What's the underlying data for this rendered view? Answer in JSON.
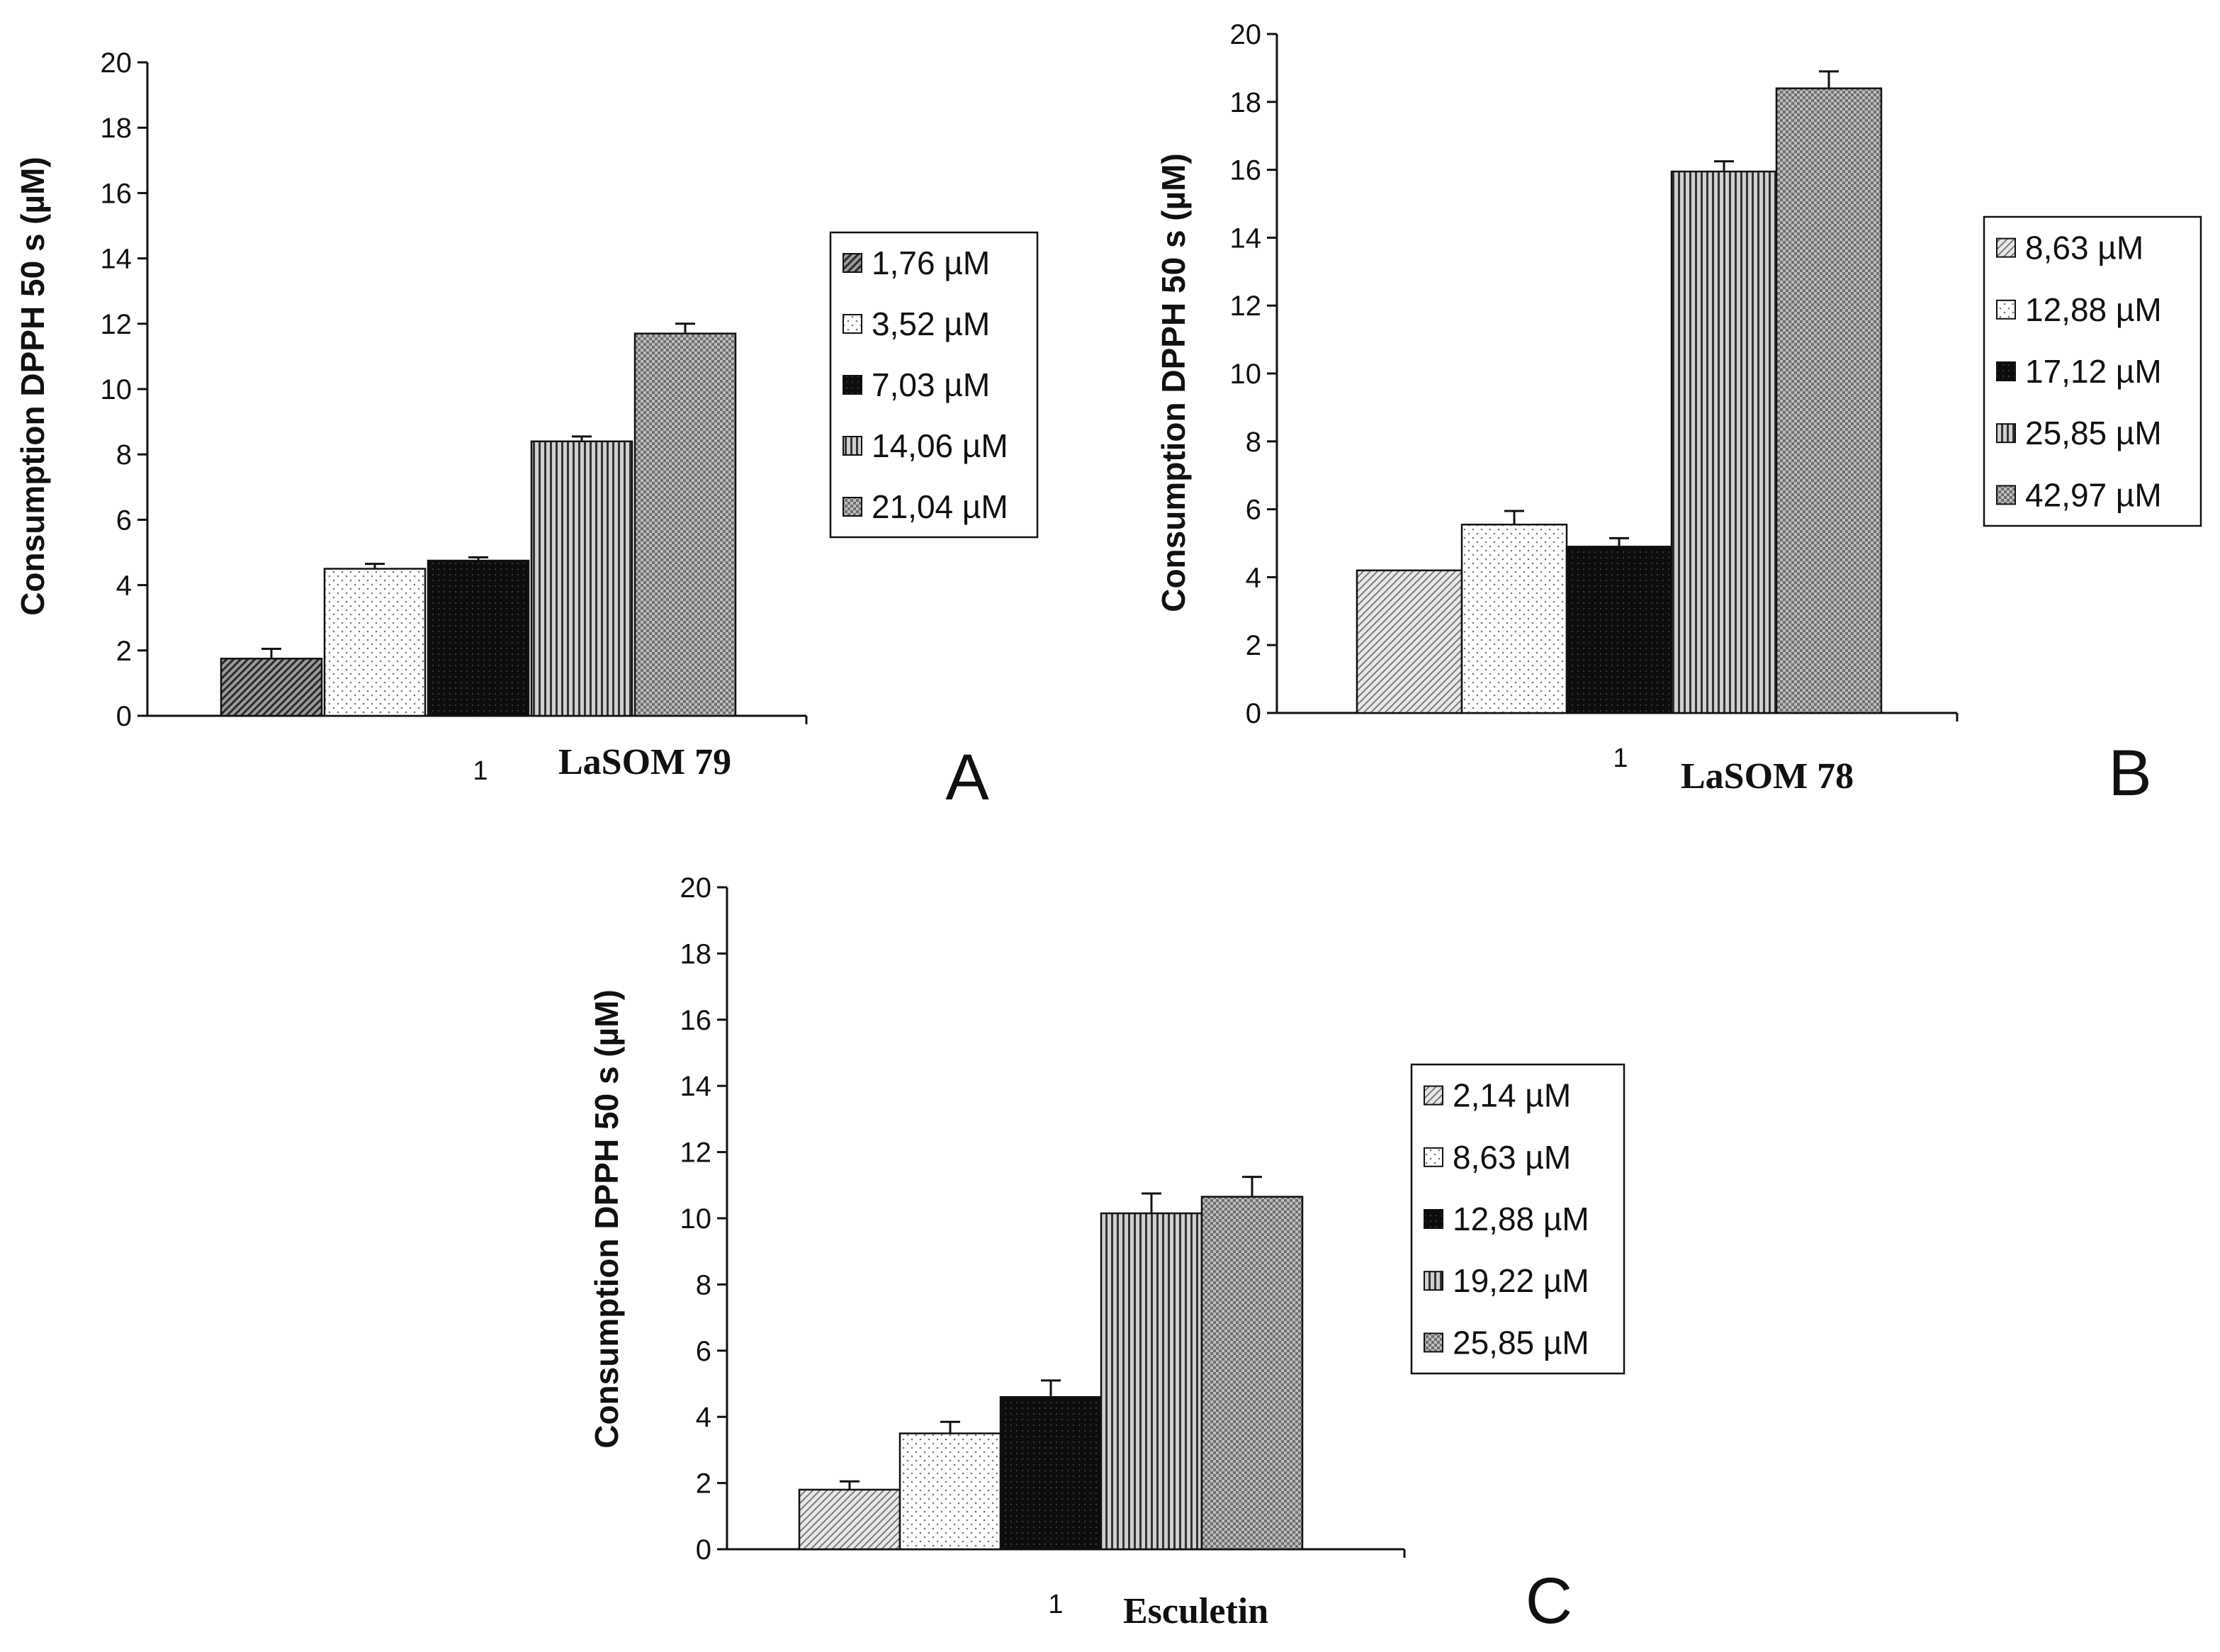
{
  "chart_data": [
    {
      "type": "bar",
      "panel": "A",
      "compound": "LaSOM 79",
      "ylabel": "Consumption DPPH 50 s (µM)",
      "category_label": "1",
      "ylim": [
        0,
        20
      ],
      "yticks": [
        0,
        2,
        4,
        6,
        8,
        10,
        12,
        14,
        16,
        18,
        20
      ],
      "legend_position": "right",
      "series": [
        {
          "name": "1,76 µM",
          "value": 1.75,
          "error": 0.3,
          "pattern": "diag-dark"
        },
        {
          "name": "3,52 µM",
          "value": 4.5,
          "error": 0.15,
          "pattern": "dots"
        },
        {
          "name": "7,03 µM",
          "value": 4.75,
          "error": 0.1,
          "pattern": "black"
        },
        {
          "name": "14,06 µM",
          "value": 8.4,
          "error": 0.15,
          "pattern": "vlines"
        },
        {
          "name": "21,04 µM",
          "value": 11.7,
          "error": 0.3,
          "pattern": "grid"
        }
      ]
    },
    {
      "type": "bar",
      "panel": "B",
      "compound": "LaSOM 78",
      "ylabel": "Consumption DPPH 50 s (µM)",
      "category_label": "1",
      "ylim": [
        0,
        20
      ],
      "yticks": [
        0,
        2,
        4,
        6,
        8,
        10,
        12,
        14,
        16,
        18,
        20
      ],
      "legend_position": "right",
      "series": [
        {
          "name": "8,63 µM",
          "value": 4.2,
          "error": 0.0,
          "pattern": "diag-light"
        },
        {
          "name": "12,88 µM",
          "value": 5.55,
          "error": 0.4,
          "pattern": "dots"
        },
        {
          "name": "17,12 µM",
          "value": 4.9,
          "error": 0.25,
          "pattern": "black"
        },
        {
          "name": "25,85 µM",
          "value": 15.95,
          "error": 0.3,
          "pattern": "vlines"
        },
        {
          "name": "42,97 µM",
          "value": 18.4,
          "error": 0.5,
          "pattern": "grid"
        }
      ]
    },
    {
      "type": "bar",
      "panel": "C",
      "compound": "Esculetin",
      "ylabel": "Consumption DPPH 50 s (µM)",
      "category_label": "1",
      "ylim": [
        0,
        20
      ],
      "yticks": [
        0,
        2,
        4,
        6,
        8,
        10,
        12,
        14,
        16,
        18,
        20
      ],
      "legend_position": "right",
      "series": [
        {
          "name": "2,14 µM",
          "value": 1.8,
          "error": 0.25,
          "pattern": "diag-light"
        },
        {
          "name": "8,63 µM",
          "value": 3.5,
          "error": 0.35,
          "pattern": "dots"
        },
        {
          "name": "12,88 µM",
          "value": 4.6,
          "error": 0.5,
          "pattern": "black"
        },
        {
          "name": "19,22 µM",
          "value": 10.15,
          "error": 0.6,
          "pattern": "vlines"
        },
        {
          "name": "25,85 µM",
          "value": 10.65,
          "error": 0.6,
          "pattern": "grid"
        }
      ]
    }
  ]
}
